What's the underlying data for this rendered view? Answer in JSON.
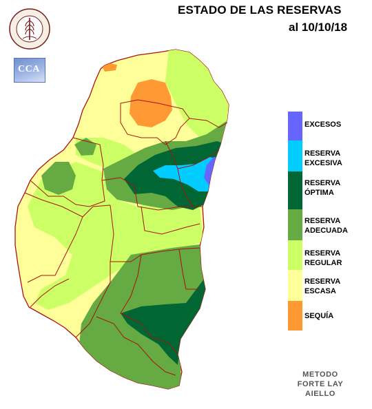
{
  "header": {
    "title": "ESTADO DE LAS RESERVAS",
    "date": "al 10/10/18"
  },
  "logos": {
    "seal_text_top": "BOLSA DE CEREALES",
    "seal_text_bottom": "DE ENTRE RIOS",
    "cca_text": "CCA"
  },
  "colors": {
    "excesos": "#6666ff",
    "reserva_excesiva": "#00ccff",
    "reserva_optima": "#006633",
    "reserva_adecuada": "#66aa44",
    "reserva_regular": "#ccff66",
    "reserva_escasa": "#ffff99",
    "sequia": "#ff9933",
    "border": "#aa1111"
  },
  "legend": [
    {
      "label": "EXCESOS",
      "color": "#6666ff"
    },
    {
      "label": "RESERVA\nEXCESIVA",
      "color": "#00ccff"
    },
    {
      "label": "RESERVA\nÓPTIMA",
      "color": "#006633"
    },
    {
      "label": "RESERVA\nADECUADA",
      "color": "#66aa44"
    },
    {
      "label": "RESERVA\nREGULAR",
      "color": "#ccff66"
    },
    {
      "label": "RESERVA\nESCASA",
      "color": "#ffff99"
    },
    {
      "label": "SEQUÍA",
      "color": "#ff9933"
    }
  ],
  "method": [
    "METODO",
    "FORTE LAY",
    "AIELLO"
  ]
}
